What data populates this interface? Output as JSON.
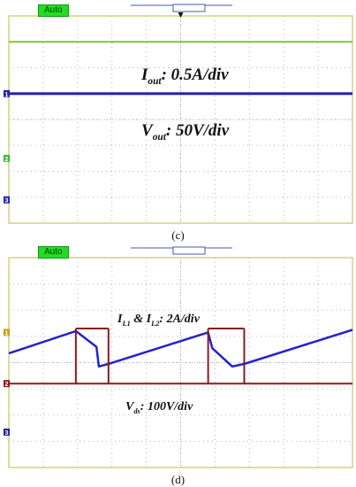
{
  "colors": {
    "grid": "#b8b8b8",
    "frame": "#d5d080",
    "iout_trace": "#7fc63a",
    "vout_trace": "#2424a8",
    "il_trace": "#2424c8",
    "vds_trace": "#8a1c1c",
    "badge": "#22dd22",
    "marker_ch1": "#c8a020",
    "marker_ch2": "#3cba3c",
    "marker_ch3": "#2424a8"
  },
  "chart_data": [
    {
      "type": "line",
      "panel_label": "(c)",
      "status": "Auto",
      "divisions": {
        "x": 10,
        "y": 8
      },
      "x": [
        0,
        10
      ],
      "ylim": [
        0,
        8
      ],
      "grid": true,
      "annotations": [
        {
          "var": "I",
          "sub": "out",
          "text": ": 0.5A/div"
        },
        {
          "var": "V",
          "sub": "out",
          "text": ": 50V/div"
        }
      ],
      "series": [
        {
          "name": "Iout",
          "values": [
            7.0,
            7.0
          ],
          "color_key": "iout_trace",
          "width": 2
        },
        {
          "name": "Vout",
          "values": [
            5.0,
            5.0
          ],
          "color_key": "vout_trace",
          "width": 3
        }
      ],
      "markers": [
        {
          "text": "1",
          "level": 5.0,
          "color_key": "marker_ch3"
        },
        {
          "text": "2",
          "level": 2.5,
          "color_key": "marker_ch2"
        },
        {
          "text": "3",
          "level": 0.9,
          "color_key": "marker_ch3"
        }
      ],
      "trigger_marker": "T"
    },
    {
      "type": "line",
      "panel_label": "(d)",
      "status": "Auto",
      "divisions": {
        "x": 10,
        "y": 8
      },
      "x": [
        0,
        1.95,
        2.55,
        2.62,
        2.9,
        5.8,
        5.92,
        6.5,
        6.85,
        10
      ],
      "ylim": [
        0,
        8
      ],
      "grid": true,
      "annotations": [
        {
          "var": "I",
          "sub": "L1",
          "text": " & I",
          "sub2": "L2",
          "text2": ": 2A/div"
        },
        {
          "var": "V",
          "sub": "ds",
          "text": ": 100V/div"
        }
      ],
      "series": [
        {
          "name": "IL",
          "values": [
            4.35,
            5.2,
            4.6,
            3.85,
            3.95,
            5.15,
            4.55,
            3.85,
            3.95,
            5.25
          ],
          "color_key": "il_trace",
          "width": 2.5
        },
        {
          "name": "Vds",
          "values": [
            3.2,
            3.2,
            3.2,
            3.2,
            3.2,
            3.2,
            3.2,
            3.2,
            3.2,
            3.2
          ],
          "color_key": "vds_trace",
          "width": 2
        },
        {
          "name": "Vds_high",
          "values": [
            5.3,
            5.3
          ],
          "x": [
            1.95,
            2.9
          ],
          "color_key": "vds_trace",
          "width": 2
        },
        {
          "name": "Vds_high2",
          "values": [
            5.3,
            5.3
          ],
          "x": [
            5.8,
            6.85
          ],
          "color_key": "vds_trace",
          "width": 2
        }
      ],
      "markers": [
        {
          "text": "1",
          "level": 5.15,
          "color_key": "marker_ch1"
        },
        {
          "text": "2",
          "level": 3.2,
          "color_key": "vds_trace"
        },
        {
          "text": "3",
          "level": 1.35,
          "color_key": "marker_ch3"
        }
      ]
    }
  ]
}
